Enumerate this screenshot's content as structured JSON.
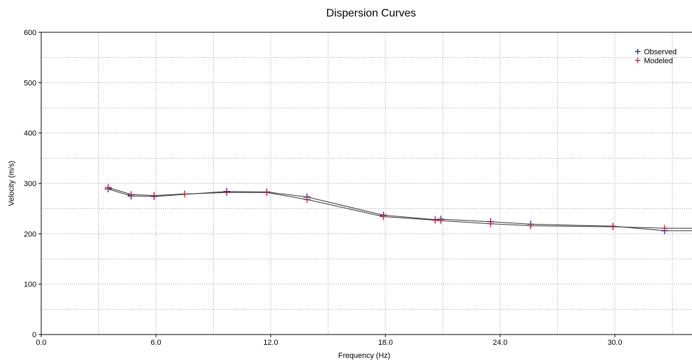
{
  "chart_data": {
    "type": "line",
    "title": "Dispersion Curves",
    "xlabel": "Frequency (Hz)",
    "ylabel": "Velocity (m/s)",
    "xlim": [
      0,
      34.5
    ],
    "ylim": [
      0,
      600
    ],
    "x_major_ticks": [
      0,
      6,
      12,
      18,
      24,
      30
    ],
    "x_tick_labels": [
      "0.0",
      "6.0",
      "12.0",
      "18.0",
      "24.0",
      "30.0"
    ],
    "x_grid": [
      0,
      3,
      6,
      9,
      12,
      15,
      18,
      21,
      24,
      27,
      30,
      33
    ],
    "y_major_ticks": [
      0,
      100,
      200,
      300,
      400,
      500,
      600
    ],
    "y_tick_labels": [
      "0",
      "100",
      "200",
      "300",
      "400",
      "500",
      "600"
    ],
    "y_grid": [
      0,
      50,
      100,
      150,
      200,
      250,
      300,
      350,
      400,
      450,
      500,
      550,
      600
    ],
    "grid": true,
    "legend_position": "top-right",
    "series": [
      {
        "name": "Observed",
        "color": "#1a1a99",
        "marker": "+",
        "x": [
          3.5,
          4.7,
          5.9,
          9.7,
          11.8,
          13.9,
          17.9,
          20.6,
          20.9,
          23.5,
          25.6,
          29.9,
          32.6,
          34.6
        ],
        "y": [
          289,
          275,
          274,
          284,
          283,
          273,
          237,
          228,
          229,
          224,
          219,
          215,
          206,
          206
        ]
      },
      {
        "name": "Modeled",
        "color": "#cc1a33",
        "marker": "+",
        "x": [
          3.5,
          4.7,
          5.9,
          7.5,
          9.7,
          11.8,
          13.9,
          17.9,
          20.6,
          20.9,
          23.5,
          25.6,
          29.9,
          32.6,
          34.6
        ],
        "y": [
          292,
          278,
          276,
          279,
          282,
          282,
          268,
          234,
          227,
          226,
          220,
          216,
          214,
          211,
          211
        ]
      }
    ]
  }
}
